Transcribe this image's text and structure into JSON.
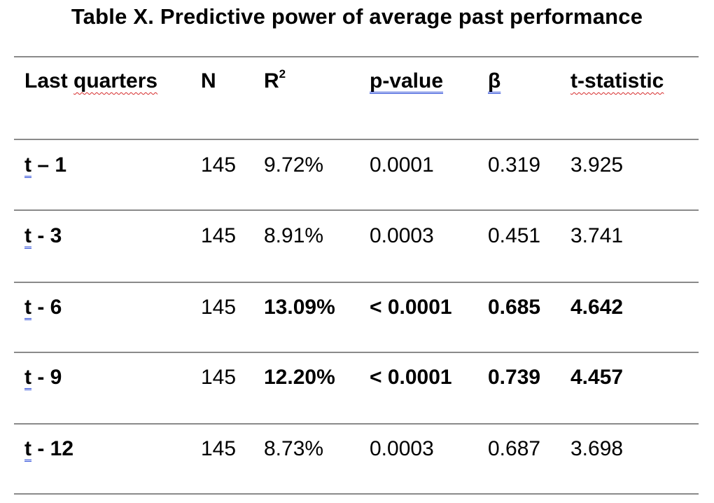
{
  "table": {
    "title": "Table X. Predictive power of average past performance",
    "headers": {
      "last_quarters_prefix": "Last ",
      "last_quarters_word": "quarters",
      "n": "N",
      "r2_base": "R",
      "r2_sup": "2",
      "p_value": "p-value",
      "beta": "β",
      "t_statistic": "t-statistic"
    },
    "rows": [
      {
        "t": "t",
        "lag": " – 1",
        "n": "145",
        "r2": "9.72%",
        "p": "0.0001",
        "beta": "0.319",
        "tstat": "3.925",
        "bold": false
      },
      {
        "t": "t",
        "lag": " - 3",
        "n": "145",
        "r2": "8.91%",
        "p": "0.0003",
        "beta": "0.451",
        "tstat": "3.741",
        "bold": false
      },
      {
        "t": "t",
        "lag": " - 6",
        "n": "145",
        "r2": "13.09%",
        "p": "< 0.0001",
        "beta": "0.685",
        "tstat": "4.642",
        "bold": true
      },
      {
        "t": "t",
        "lag": " - 9",
        "n": "145",
        "r2": "12.20%",
        "p": "< 0.0001",
        "beta": "0.739",
        "tstat": "4.457",
        "bold": true
      },
      {
        "t": "t",
        "lag": " - 12",
        "n": "145",
        "r2": "8.73%",
        "p": "0.0003",
        "beta": "0.687",
        "tstat": "3.698",
        "bold": false
      }
    ]
  }
}
